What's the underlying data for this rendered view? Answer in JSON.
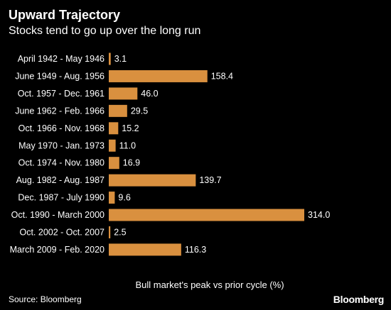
{
  "title": "Upward Trajectory",
  "subtitle": "Stocks tend to go up over the long run",
  "source": "Source: Bloomberg",
  "brand": "Bloomberg",
  "colors": {
    "background": "#000000",
    "bar": "#D9903F",
    "text": "#ffffff"
  },
  "chart_data": {
    "type": "bar",
    "orientation": "horizontal",
    "categories": [
      "April 1942 - May 1946",
      "June 1949 - Aug. 1956",
      "Oct. 1957 - Dec. 1961",
      "June 1962 - Feb. 1966",
      "Oct. 1966 - Nov. 1968",
      "May 1970 - Jan. 1973",
      "Oct. 1974 - Nov. 1980",
      "Aug. 1982 - Aug. 1987",
      "Dec. 1987 - July 1990",
      "Oct. 1990 - March 2000",
      "Oct. 2002 - Oct. 2007",
      "March 2009 - Feb. 2020"
    ],
    "values": [
      3.1,
      158.4,
      46.0,
      29.5,
      15.2,
      11.0,
      16.9,
      139.7,
      9.6,
      314.0,
      2.5,
      116.3
    ],
    "value_labels": [
      "3.1",
      "158.4",
      "46.0",
      "29.5",
      "15.2",
      "11.0",
      "16.9",
      "139.7",
      "9.6",
      "314.0",
      "2.5",
      "116.3"
    ],
    "title": "Upward Trajectory",
    "subtitle": "Stocks tend to go up over the long run",
    "xlabel": "Bull market's peak vs prior cycle (%)",
    "ylabel": "",
    "xlim": [
      0,
      314.0
    ],
    "grid": false,
    "legend": "none"
  }
}
